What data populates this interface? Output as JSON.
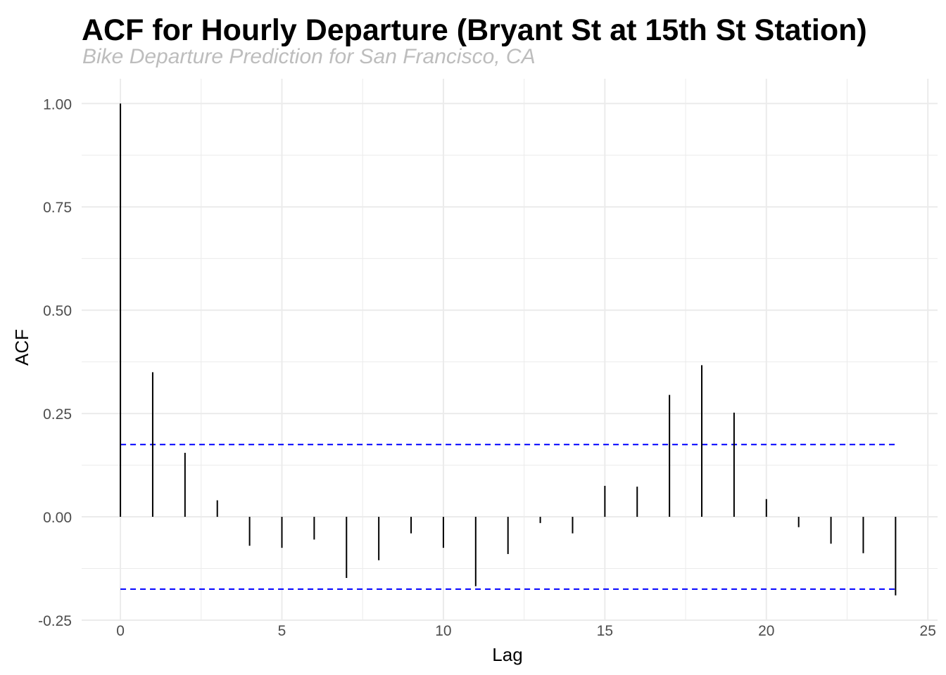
{
  "title": "ACF for Hourly Departure (Bryant St at 15th St Station)",
  "subtitle": "Bike Departure Prediction for San Francisco, CA",
  "chart_data": {
    "type": "bar",
    "subtype": "acf-spikes",
    "xlabel": "Lag",
    "ylabel": "ACF",
    "xlim": [
      -1.2,
      25.3
    ],
    "ylim": [
      -0.25,
      1.06
    ],
    "x_ticks": [
      0,
      5,
      10,
      15,
      20,
      25
    ],
    "x_tick_labels": [
      "0",
      "5",
      "10",
      "15",
      "20",
      "25"
    ],
    "y_ticks": [
      -0.25,
      0,
      0.25,
      0.5,
      0.75,
      1.0
    ],
    "y_tick_labels": [
      "-0.25",
      "0.00",
      "0.25",
      "0.50",
      "0.75",
      "1.00"
    ],
    "grid": true,
    "lags": [
      0,
      1,
      2,
      3,
      4,
      5,
      6,
      7,
      8,
      9,
      10,
      11,
      12,
      13,
      14,
      15,
      16,
      17,
      18,
      19,
      20,
      21,
      22,
      23,
      24
    ],
    "acf": [
      1.0,
      0.35,
      0.155,
      0.04,
      -0.07,
      -0.075,
      -0.055,
      -0.148,
      -0.105,
      -0.04,
      -0.075,
      -0.168,
      -0.09,
      -0.015,
      -0.04,
      0.075,
      0.073,
      0.295,
      0.367,
      0.252,
      0.043,
      -0.025,
      -0.065,
      -0.088,
      -0.19
    ],
    "confidence_bound": 0.175,
    "confidence_range": [
      0,
      24
    ],
    "colors": {
      "spike": "#000000",
      "confidence": "#0000ff",
      "grid": "#ebebeb",
      "tick_label": "#4d4d4d",
      "axis_label": "#000000"
    }
  }
}
